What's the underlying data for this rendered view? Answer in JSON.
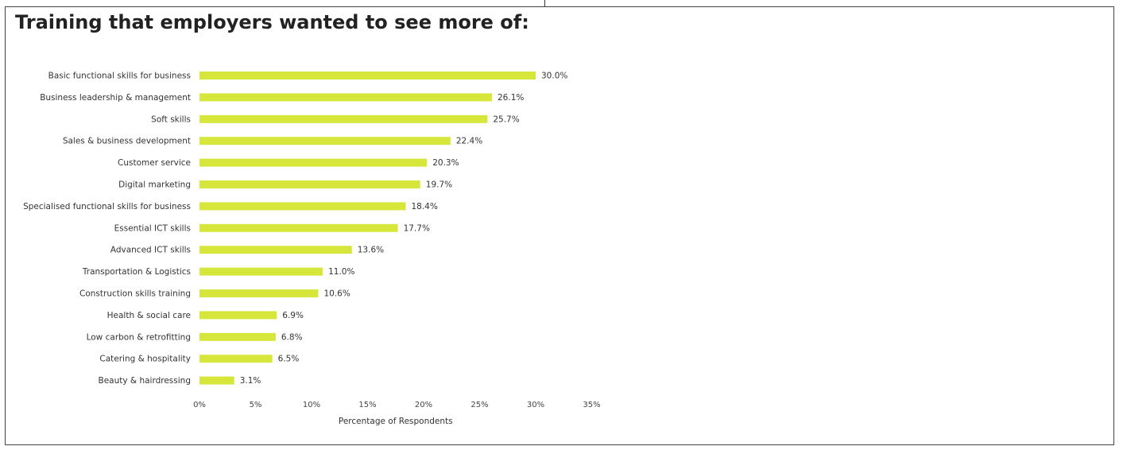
{
  "page": {
    "title": "Training that employers wanted to see more of:"
  },
  "chart_data": {
    "type": "bar",
    "orientation": "horizontal",
    "title": "Training that employers wanted to see more of:",
    "xlabel": "Percentage of Respondents",
    "ylabel": "",
    "xlim": [
      0,
      35
    ],
    "x_ticks": [
      "0%",
      "5%",
      "10%",
      "15%",
      "20%",
      "25%",
      "30%",
      "35%"
    ],
    "grid": false,
    "legend": "none",
    "bar_color": "#d7e63a",
    "categories": [
      "Basic functional skills for business",
      "Business leadership  & management",
      "Soft skills",
      "Sales & business development",
      "Customer service",
      "Digital marketing",
      "Specialised functional skills for business",
      "Essential ICT skills",
      "Advanced ICT skills",
      "Transportation & Logistics",
      "Construction skills training",
      "Health & social care",
      "Low carbon & retrofitting",
      "Catering & hospitality",
      "Beauty & hairdressing"
    ],
    "values": [
      30.0,
      26.1,
      25.7,
      22.4,
      20.3,
      19.7,
      18.4,
      17.7,
      13.6,
      11.0,
      10.6,
      6.9,
      6.8,
      6.5,
      3.1
    ],
    "data_labels": [
      "30.0%",
      "26.1%",
      "25.7%",
      "22.4%",
      "20.3%",
      "19.7%",
      "18.4%",
      "17.7%",
      "13.6%",
      "11.0%",
      "10.6%",
      "6.9%",
      "6.8%",
      "6.5%",
      "3.1%"
    ]
  }
}
